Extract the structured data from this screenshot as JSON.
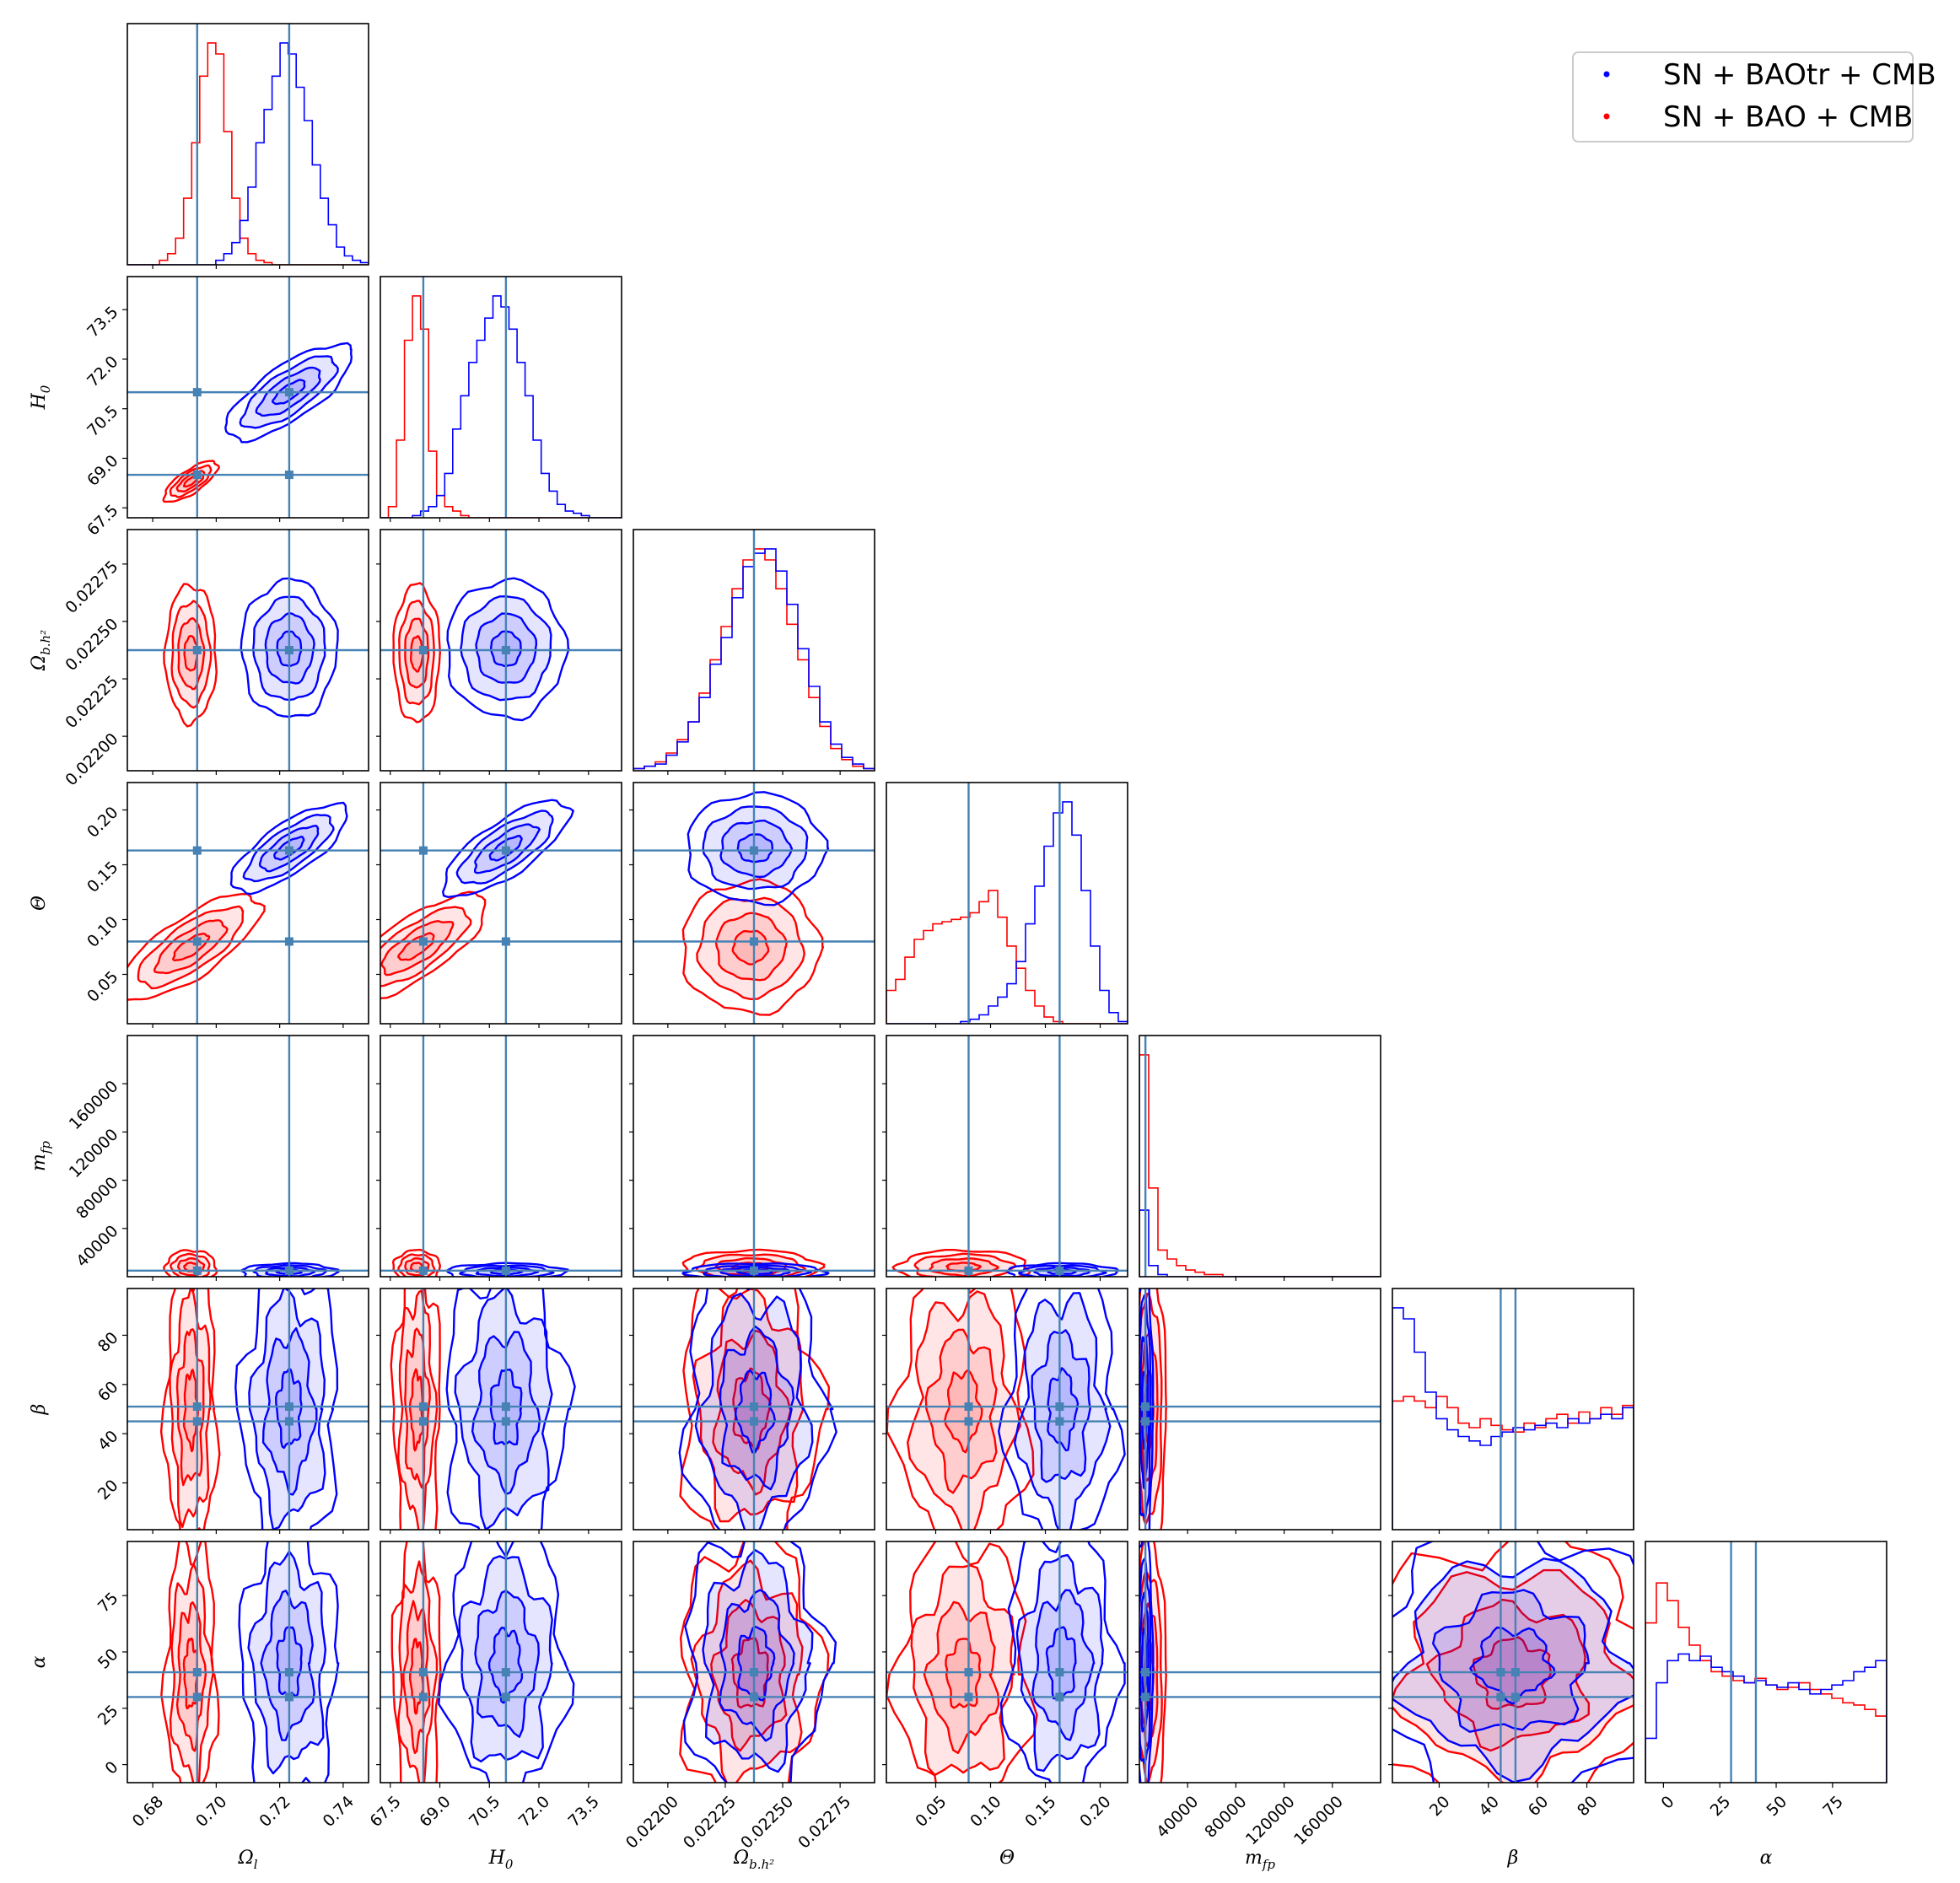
{
  "chart_data": {
    "type": "corner",
    "legend": {
      "placement": "top-right",
      "entries": [
        {
          "label": "SN + BAOtr + CMB",
          "color": "#0000ff"
        },
        {
          "label": "SN + BAO + CMB",
          "color": "#ff0000"
        }
      ]
    },
    "colors": {
      "blue": "#0000ff",
      "red": "#ff0000",
      "truth": "#4682b4",
      "frame": "#000000"
    },
    "parameters": [
      {
        "name": "omega_l",
        "label": "Ω_l",
        "range": [
          0.672,
          0.748
        ],
        "ticks": [
          0.68,
          0.7,
          0.72,
          0.74
        ],
        "tick_labels": [
          "0.68",
          "0.70",
          "0.72",
          "0.74"
        ],
        "truths": [
          0.694,
          0.723
        ],
        "blue": {
          "mean": 0.723,
          "sd": 0.0075
        },
        "red": {
          "mean": 0.692,
          "sd": 0.004
        }
      },
      {
        "name": "H0",
        "label": "H_0",
        "range": [
          67.2,
          74.5
        ],
        "ticks": [
          67.5,
          69.0,
          70.5,
          72.0,
          73.5
        ],
        "tick_labels": [
          "67.5",
          "69.0",
          "70.5",
          "72.0",
          "73.5"
        ],
        "truths": [
          68.5,
          71.0
        ],
        "blue": {
          "mean": 71.0,
          "sd": 0.9
        },
        "red": {
          "mean": 68.3,
          "sd": 0.35
        }
      },
      {
        "name": "omega_b_h2",
        "label": "Ω_b.h²",
        "range": [
          0.02185,
          0.0229
        ],
        "ticks": [
          0.022,
          0.02225,
          0.0225,
          0.02275
        ],
        "tick_labels": [
          "0.02200",
          "0.02225",
          "0.02250",
          "0.02275"
        ],
        "truths": [
          0.022375
        ],
        "blue": {
          "mean": 0.02238,
          "sd": 0.00015
        },
        "red": {
          "mean": 0.02236,
          "sd": 0.00015
        }
      },
      {
        "name": "theta",
        "label": "Θ",
        "range": [
          0.005,
          0.225
        ],
        "ticks": [
          0.05,
          0.1,
          0.15,
          0.2
        ],
        "tick_labels": [
          "0.05",
          "0.10",
          "0.15",
          "0.20"
        ],
        "truths": [
          0.08,
          0.163
        ],
        "blue": {
          "mean": 0.165,
          "sd": 0.025
        },
        "red": {
          "mean": 0.075,
          "sd": 0.03
        }
      },
      {
        "name": "m_fp",
        "label": "m_fp",
        "range": [
          0,
          200000
        ],
        "ticks": [
          40000,
          80000,
          120000,
          160000
        ],
        "tick_labels": [
          "40000",
          "80000",
          "120000",
          "160000"
        ],
        "truths": [
          5000
        ],
        "blue": {
          "mean": 4000,
          "sd": 2000
        },
        "red": {
          "mean": 8000,
          "sd": 7000
        }
      },
      {
        "name": "beta",
        "label": "β",
        "range": [
          1,
          99
        ],
        "ticks": [
          20,
          40,
          60,
          80
        ],
        "tick_labels": [
          "20",
          "40",
          "60",
          "80"
        ],
        "truths": [
          45,
          51
        ],
        "blue": {
          "mean": 50,
          "sd": 30
        },
        "red": {
          "mean": 50,
          "sd": 30
        }
      },
      {
        "name": "alpha",
        "label": "α",
        "range": [
          -8,
          99
        ],
        "ticks": [
          0,
          25,
          50,
          75
        ],
        "tick_labels": [
          "0",
          "25",
          "50",
          "75"
        ],
        "truths": [
          30,
          41
        ],
        "blue": {
          "mean": 45,
          "sd": 30
        },
        "red": {
          "mean": 40,
          "sd": 30
        }
      }
    ],
    "histograms": {
      "omega_l": {
        "red": [
          0,
          0,
          0,
          0,
          0.02,
          0.05,
          0.12,
          0.3,
          0.55,
          0.85,
          1.0,
          0.95,
          0.6,
          0.3,
          0.12,
          0.05,
          0.02,
          0.01,
          0,
          0,
          0,
          0,
          0,
          0,
          0,
          0,
          0,
          0,
          0,
          0
        ],
        "blue": [
          0,
          0,
          0,
          0,
          0,
          0,
          0,
          0,
          0,
          0,
          0,
          0.02,
          0.05,
          0.1,
          0.2,
          0.35,
          0.55,
          0.7,
          0.85,
          1.0,
          0.95,
          0.8,
          0.65,
          0.45,
          0.3,
          0.18,
          0.08,
          0.04,
          0.02,
          0.01
        ]
      },
      "H0": {
        "red": [
          0,
          0.05,
          0.35,
          0.8,
          1.0,
          0.85,
          0.3,
          0.1,
          0.05,
          0.03,
          0.01,
          0,
          0,
          0,
          0,
          0,
          0,
          0,
          0,
          0,
          0,
          0,
          0,
          0,
          0,
          0,
          0,
          0,
          0,
          0
        ],
        "blue": [
          0,
          0,
          0,
          0,
          0.01,
          0.03,
          0.05,
          0.1,
          0.2,
          0.4,
          0.55,
          0.7,
          0.8,
          0.9,
          1.0,
          0.95,
          0.85,
          0.7,
          0.55,
          0.35,
          0.2,
          0.12,
          0.06,
          0.03,
          0.02,
          0.01,
          0,
          0,
          0,
          0
        ]
      },
      "omega_b_h2": {
        "red": [
          0.01,
          0.02,
          0.04,
          0.08,
          0.14,
          0.22,
          0.35,
          0.5,
          0.65,
          0.82,
          0.95,
          1.0,
          0.95,
          0.82,
          0.66,
          0.5,
          0.33,
          0.2,
          0.1,
          0.05,
          0.02,
          0.01
        ],
        "blue": [
          0.01,
          0.02,
          0.03,
          0.07,
          0.13,
          0.22,
          0.33,
          0.48,
          0.6,
          0.78,
          0.92,
          0.98,
          1.0,
          0.9,
          0.75,
          0.55,
          0.38,
          0.22,
          0.12,
          0.06,
          0.03,
          0.01
        ]
      },
      "theta": {
        "red": [
          0.15,
          0.2,
          0.3,
          0.38,
          0.42,
          0.45,
          0.46,
          0.47,
          0.48,
          0.5,
          0.55,
          0.6,
          0.48,
          0.35,
          0.25,
          0.15,
          0.08,
          0.03,
          0.01,
          0,
          0,
          0,
          0,
          0,
          0,
          0
        ],
        "blue": [
          0,
          0,
          0,
          0,
          0,
          0,
          0,
          0,
          0.01,
          0.02,
          0.04,
          0.08,
          0.12,
          0.18,
          0.28,
          0.45,
          0.62,
          0.8,
          0.95,
          1.0,
          0.85,
          0.6,
          0.35,
          0.15,
          0.05,
          0.01
        ]
      },
      "m_fp": {
        "red": [
          1.0,
          0.4,
          0.12,
          0.08,
          0.05,
          0.03,
          0.02,
          0.01,
          0.01,
          0,
          0,
          0,
          0,
          0,
          0,
          0,
          0,
          0,
          0,
          0,
          0,
          0,
          0,
          0,
          0,
          0
        ],
        "blue": [
          0.3,
          0.05,
          0.01,
          0,
          0,
          0,
          0,
          0,
          0,
          0,
          0,
          0,
          0,
          0,
          0,
          0,
          0,
          0,
          0,
          0,
          0,
          0,
          0,
          0,
          0,
          0
        ]
      },
      "beta": {
        "red": [
          0.58,
          0.6,
          0.58,
          0.55,
          0.6,
          0.55,
          0.48,
          0.46,
          0.5,
          0.47,
          0.45,
          0.44,
          0.48,
          0.46,
          0.5,
          0.52,
          0.48,
          0.53,
          0.5,
          0.55,
          0.52,
          0.56
        ],
        "blue": [
          1.0,
          0.95,
          0.8,
          0.62,
          0.5,
          0.45,
          0.42,
          0.4,
          0.38,
          0.42,
          0.44,
          0.46,
          0.45,
          0.47,
          0.48,
          0.46,
          0.5,
          0.48,
          0.5,
          0.52,
          0.5,
          0.55
        ]
      },
      "alpha": {
        "red": [
          0.72,
          0.9,
          0.82,
          0.7,
          0.62,
          0.55,
          0.5,
          0.48,
          0.46,
          0.45,
          0.47,
          0.44,
          0.42,
          0.43,
          0.45,
          0.42,
          0.4,
          0.38,
          0.36,
          0.35,
          0.33,
          0.3
        ],
        "blue": [
          0.2,
          0.45,
          0.55,
          0.58,
          0.55,
          0.57,
          0.52,
          0.5,
          0.48,
          0.45,
          0.46,
          0.44,
          0.43,
          0.45,
          0.42,
          0.4,
          0.42,
          0.44,
          0.46,
          0.5,
          0.52,
          0.55
        ]
      }
    }
  }
}
